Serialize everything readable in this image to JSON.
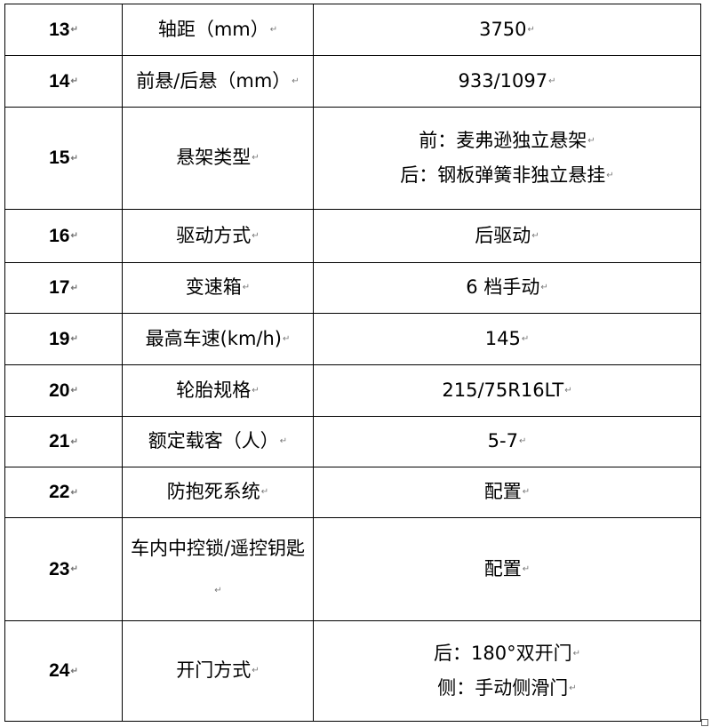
{
  "table": {
    "rows": [
      {
        "no": "13",
        "item": "轴距（mm）",
        "value": [
          "3750"
        ]
      },
      {
        "no": "14",
        "item": "前悬/后悬（mm）",
        "value": [
          "933/1097"
        ]
      },
      {
        "no": "15",
        "item": "悬架类型",
        "value": [
          "前：麦弗逊独立悬架",
          "后：钢板弹簧非独立悬挂"
        ]
      },
      {
        "no": "16",
        "item": "驱动方式",
        "value": [
          "后驱动"
        ]
      },
      {
        "no": "17",
        "item": "变速箱",
        "value": [
          "6 档手动"
        ]
      },
      {
        "no": "19",
        "item": "最高车速(km/h)",
        "value": [
          "145"
        ]
      },
      {
        "no": "20",
        "item": "轮胎规格",
        "value": [
          "215/75R16LT"
        ]
      },
      {
        "no": "21",
        "item": "额定载客（人）",
        "value": [
          "5-7"
        ]
      },
      {
        "no": "22",
        "item": "防抱死系统",
        "value": [
          "配置"
        ]
      },
      {
        "no": "23",
        "item": "车内中控锁/遥控钥匙",
        "value": [
          "配置"
        ]
      },
      {
        "no": "24",
        "item": "开门方式",
        "value": [
          "后：180°双开门",
          "侧：手动侧滑门"
        ]
      }
    ]
  }
}
